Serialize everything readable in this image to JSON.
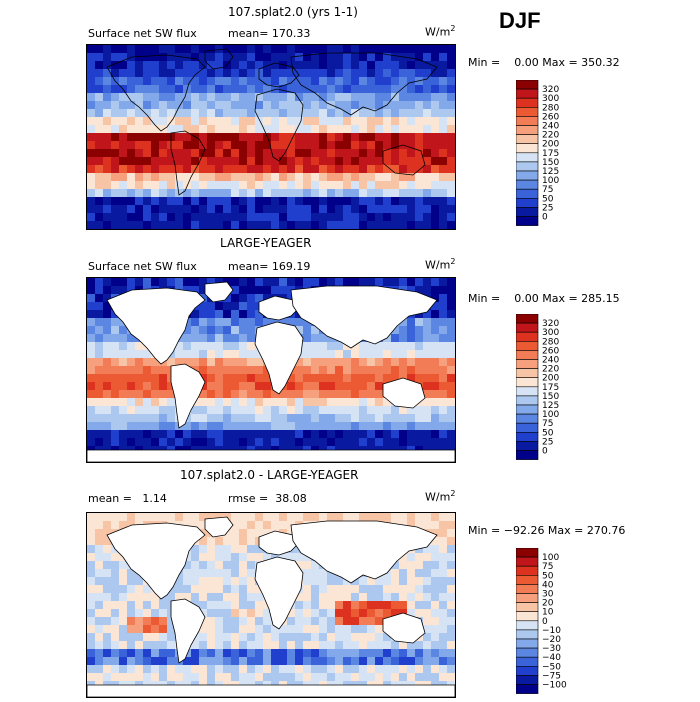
{
  "season": "DJF",
  "panels": [
    {
      "title": "107.splat2.0 (yrs 1-1)",
      "left_label": "Surface net SW flux",
      "middle_label": "mean= 170.33",
      "units": "W/m",
      "units_exp": "2",
      "minmax": "Min =    0.00 Max = 350.32",
      "land_mask": false
    },
    {
      "title": "LARGE-YEAGER",
      "left_label": "Surface net SW flux",
      "middle_label": "mean= 169.19",
      "units": "W/m",
      "units_exp": "2",
      "minmax": "Min =    0.00 Max = 285.15",
      "land_mask": true
    },
    {
      "title": "107.splat2.0 - LARGE-YEAGER",
      "left_label": "mean =   1.14",
      "middle_label": "rmse =  38.08",
      "units": "W/m",
      "units_exp": "2",
      "minmax": "Min = −92.26 Max = 270.76",
      "land_mask": true
    }
  ],
  "chart_data": [
    {
      "type": "heatmap",
      "title": "107.splat2.0 (yrs 1-1)",
      "colorbar_levels": [
        "320",
        "300",
        "280",
        "260",
        "240",
        "220",
        "200",
        "175",
        "150",
        "125",
        "100",
        "75",
        "50",
        "25",
        "0"
      ],
      "colorbar_colors": [
        "#8b0000",
        "#c0151a",
        "#dd3220",
        "#ec5a34",
        "#f27c55",
        "#f6a07d",
        "#f8c4a6",
        "#fbe6d6",
        "#d5e3f5",
        "#adc8ef",
        "#84a9ea",
        "#5b86e2",
        "#3a62d9",
        "#1f3fcc",
        "#0a1aa0",
        "#00008b"
      ],
      "value_min": 0.0,
      "value_max": 350.32,
      "mean": 170.33
    },
    {
      "type": "heatmap",
      "title": "LARGE-YEAGER",
      "colorbar_levels": [
        "320",
        "300",
        "280",
        "260",
        "240",
        "220",
        "200",
        "175",
        "150",
        "125",
        "100",
        "75",
        "50",
        "25",
        "0"
      ],
      "colorbar_colors": [
        "#8b0000",
        "#c0151a",
        "#dd3220",
        "#ec5a34",
        "#f27c55",
        "#f6a07d",
        "#f8c4a6",
        "#fbe6d6",
        "#d5e3f5",
        "#adc8ef",
        "#84a9ea",
        "#5b86e2",
        "#3a62d9",
        "#1f3fcc",
        "#0a1aa0",
        "#00008b"
      ],
      "value_min": 0.0,
      "value_max": 285.15,
      "mean": 169.19
    },
    {
      "type": "heatmap",
      "title": "107.splat2.0 - LARGE-YEAGER",
      "colorbar_levels": [
        "100",
        "75",
        "50",
        "40",
        "30",
        "20",
        "10",
        "0",
        "−10",
        "−20",
        "−30",
        "−40",
        "−50",
        "−75",
        "−100"
      ],
      "colorbar_colors": [
        "#8b0000",
        "#c0151a",
        "#dd3220",
        "#ec5a34",
        "#f27c55",
        "#f6a07d",
        "#f8c4a6",
        "#fbe6d6",
        "#d5e3f5",
        "#adc8ef",
        "#84a9ea",
        "#5b86e2",
        "#3a62d9",
        "#1f3fcc",
        "#0a1aa0",
        "#00008b"
      ],
      "value_min": -92.26,
      "value_max": 270.76,
      "mean": 1.14,
      "rmse": 38.08
    }
  ]
}
